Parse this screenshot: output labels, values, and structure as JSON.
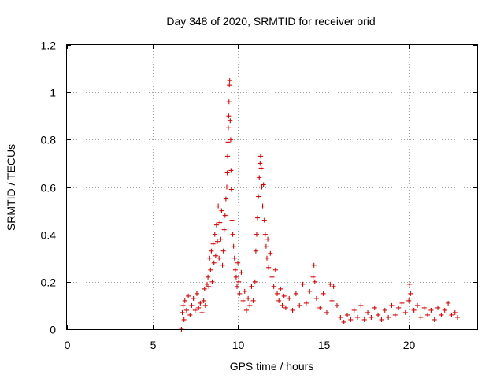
{
  "chart_data": {
    "type": "scatter",
    "title": "Day 348 of 2020, SRMTID for receiver orid",
    "xlabel": "GPS time / hours",
    "ylabel": "SRMTID / TECUs",
    "xlim": [
      0,
      24
    ],
    "ylim": [
      0,
      1.2
    ],
    "xticks": [
      0,
      5,
      10,
      15,
      20
    ],
    "xtick_labels": [
      "0",
      "5",
      "10",
      "15",
      "20"
    ],
    "yticks": [
      0,
      0.2,
      0.4,
      0.6,
      0.8,
      1.0,
      1.2
    ],
    "ytick_labels": [
      "0",
      "0.2",
      "0.4",
      "0.6",
      "0.8",
      "1",
      "1.2"
    ],
    "grid": true,
    "marker": "+",
    "color": "#e00000",
    "series": [
      {
        "name": "SRMTID",
        "points": [
          [
            6.7,
            0.0
          ],
          [
            6.75,
            0.07
          ],
          [
            6.8,
            0.1
          ],
          [
            6.85,
            0.04
          ],
          [
            6.9,
            0.12
          ],
          [
            7.0,
            0.08
          ],
          [
            7.1,
            0.14
          ],
          [
            7.2,
            0.06
          ],
          [
            7.3,
            0.1
          ],
          [
            7.4,
            0.13
          ],
          [
            7.5,
            0.08
          ],
          [
            7.6,
            0.15
          ],
          [
            7.7,
            0.09
          ],
          [
            7.8,
            0.11
          ],
          [
            7.9,
            0.07
          ],
          [
            8.0,
            0.12
          ],
          [
            8.05,
            0.17
          ],
          [
            8.1,
            0.1
          ],
          [
            8.2,
            0.19
          ],
          [
            8.25,
            0.22
          ],
          [
            8.3,
            0.18
          ],
          [
            8.35,
            0.3
          ],
          [
            8.4,
            0.25
          ],
          [
            8.45,
            0.33
          ],
          [
            8.5,
            0.2
          ],
          [
            8.55,
            0.36
          ],
          [
            8.6,
            0.28
          ],
          [
            8.65,
            0.4
          ],
          [
            8.7,
            0.31
          ],
          [
            8.75,
            0.44
          ],
          [
            8.8,
            0.37
          ],
          [
            8.85,
            0.52
          ],
          [
            8.9,
            0.3
          ],
          [
            8.95,
            0.45
          ],
          [
            9.0,
            0.38
          ],
          [
            9.05,
            0.5
          ],
          [
            9.1,
            0.27
          ],
          [
            9.15,
            0.33
          ],
          [
            9.2,
            0.42
          ],
          [
            9.25,
            0.48
          ],
          [
            9.3,
            0.55
          ],
          [
            9.35,
            0.6
          ],
          [
            9.38,
            0.66
          ],
          [
            9.4,
            0.73
          ],
          [
            9.42,
            0.79
          ],
          [
            9.44,
            0.85
          ],
          [
            9.46,
            0.9
          ],
          [
            9.48,
            0.96
          ],
          [
            9.5,
            1.03
          ],
          [
            9.52,
            1.05
          ],
          [
            9.55,
            0.88
          ],
          [
            9.58,
            0.8
          ],
          [
            9.6,
            0.67
          ],
          [
            9.62,
            0.59
          ],
          [
            9.65,
            0.46
          ],
          [
            9.7,
            0.4
          ],
          [
            9.75,
            0.35
          ],
          [
            9.8,
            0.3
          ],
          [
            9.85,
            0.25
          ],
          [
            9.9,
            0.22
          ],
          [
            9.95,
            0.18
          ],
          [
            10.0,
            0.28
          ],
          [
            10.05,
            0.2
          ],
          [
            10.1,
            0.15
          ],
          [
            10.2,
            0.24
          ],
          [
            10.3,
            0.12
          ],
          [
            10.4,
            0.16
          ],
          [
            10.5,
            0.08
          ],
          [
            10.6,
            0.13
          ],
          [
            10.7,
            0.1
          ],
          [
            10.8,
            0.18
          ],
          [
            10.9,
            0.12
          ],
          [
            11.0,
            0.2
          ],
          [
            11.05,
            0.33
          ],
          [
            11.1,
            0.4
          ],
          [
            11.15,
            0.47
          ],
          [
            11.2,
            0.56
          ],
          [
            11.25,
            0.64
          ],
          [
            11.3,
            0.7
          ],
          [
            11.33,
            0.73
          ],
          [
            11.36,
            0.68
          ],
          [
            11.4,
            0.6
          ],
          [
            11.45,
            0.52
          ],
          [
            11.5,
            0.61
          ],
          [
            11.55,
            0.46
          ],
          [
            11.6,
            0.4
          ],
          [
            11.65,
            0.35
          ],
          [
            11.7,
            0.3
          ],
          [
            11.75,
            0.38
          ],
          [
            11.8,
            0.26
          ],
          [
            11.9,
            0.32
          ],
          [
            12.0,
            0.22
          ],
          [
            12.1,
            0.18
          ],
          [
            12.2,
            0.25
          ],
          [
            12.3,
            0.15
          ],
          [
            12.4,
            0.12
          ],
          [
            12.5,
            0.17
          ],
          [
            12.6,
            0.1
          ],
          [
            12.7,
            0.14
          ],
          [
            12.8,
            0.09
          ],
          [
            13.0,
            0.13
          ],
          [
            13.2,
            0.08
          ],
          [
            13.4,
            0.15
          ],
          [
            13.6,
            0.1
          ],
          [
            13.8,
            0.19
          ],
          [
            14.0,
            0.11
          ],
          [
            14.2,
            0.16
          ],
          [
            14.4,
            0.22
          ],
          [
            14.45,
            0.27
          ],
          [
            14.5,
            0.2
          ],
          [
            14.6,
            0.13
          ],
          [
            14.8,
            0.09
          ],
          [
            15.0,
            0.15
          ],
          [
            15.2,
            0.07
          ],
          [
            15.4,
            0.19
          ],
          [
            15.5,
            0.12
          ],
          [
            15.6,
            0.18
          ],
          [
            15.8,
            0.1
          ],
          [
            16.0,
            0.05
          ],
          [
            16.2,
            0.03
          ],
          [
            16.4,
            0.06
          ],
          [
            16.6,
            0.04
          ],
          [
            16.8,
            0.08
          ],
          [
            17.0,
            0.05
          ],
          [
            17.2,
            0.1
          ],
          [
            17.4,
            0.04
          ],
          [
            17.6,
            0.07
          ],
          [
            17.8,
            0.05
          ],
          [
            18.0,
            0.09
          ],
          [
            18.2,
            0.06
          ],
          [
            18.4,
            0.04
          ],
          [
            18.6,
            0.08
          ],
          [
            18.8,
            0.05
          ],
          [
            19.0,
            0.1
          ],
          [
            19.2,
            0.06
          ],
          [
            19.4,
            0.09
          ],
          [
            19.6,
            0.11
          ],
          [
            19.8,
            0.07
          ],
          [
            20.0,
            0.12
          ],
          [
            20.05,
            0.19
          ],
          [
            20.1,
            0.15
          ],
          [
            20.3,
            0.08
          ],
          [
            20.5,
            0.1
          ],
          [
            20.7,
            0.05
          ],
          [
            20.9,
            0.09
          ],
          [
            21.1,
            0.06
          ],
          [
            21.3,
            0.08
          ],
          [
            21.5,
            0.04
          ],
          [
            21.7,
            0.09
          ],
          [
            21.9,
            0.06
          ],
          [
            22.1,
            0.08
          ],
          [
            22.3,
            0.11
          ],
          [
            22.5,
            0.06
          ],
          [
            22.7,
            0.07
          ],
          [
            22.85,
            0.05
          ]
        ]
      }
    ]
  }
}
